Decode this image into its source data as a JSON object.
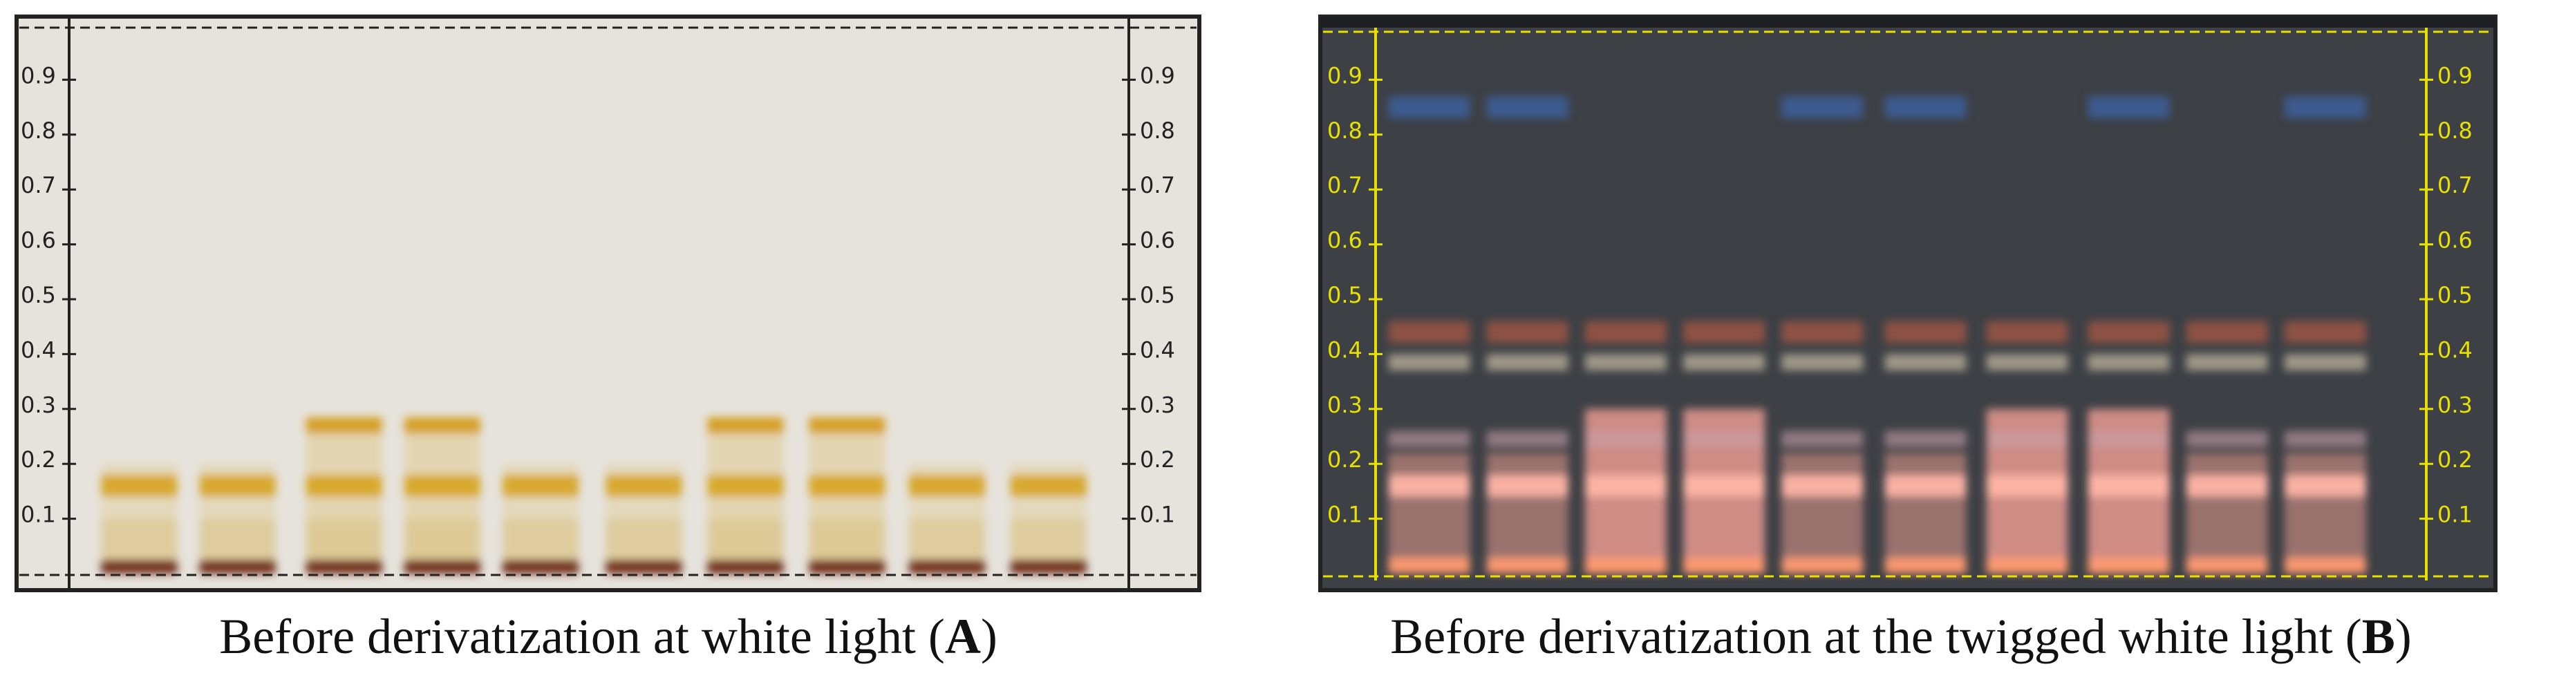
{
  "panels": [
    {
      "scale_left": [
        0.9,
        0.8,
        0.7,
        0.6,
        0.5,
        0.4,
        0.3,
        0.2,
        0.1
      ],
      "scale_right": [
        0.9,
        0.8,
        0.7,
        0.6,
        0.5,
        0.4,
        0.3,
        0.2,
        0.1
      ],
      "caption": {
        "text": "Before derivatization at white light",
        "open": "(",
        "label": "A",
        "close": ")"
      }
    },
    {
      "scale_left": [
        0.9,
        0.8,
        0.7,
        0.6,
        0.5,
        0.4,
        0.3,
        0.2,
        0.1
      ],
      "scale_right": [
        0.9,
        0.8,
        0.7,
        0.6,
        0.5,
        0.4,
        0.3,
        0.2,
        0.1
      ],
      "caption": {
        "text": "Before derivatization at the twigged white light",
        "open": "(",
        "label": "B",
        "close": ")"
      }
    }
  ]
}
